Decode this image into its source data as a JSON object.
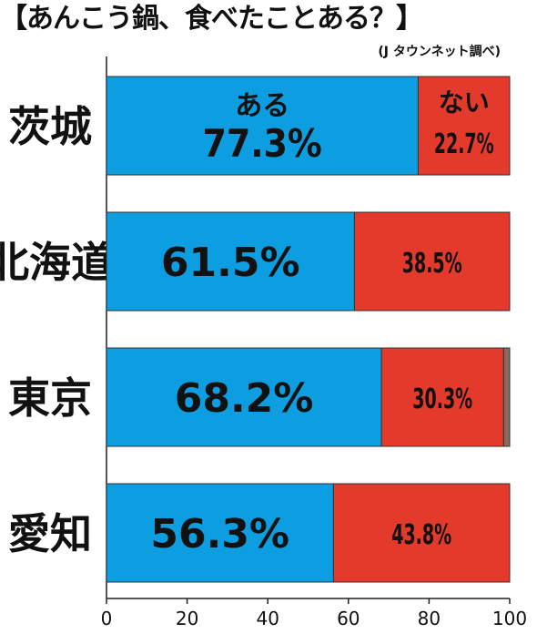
{
  "title": "【あんこう鍋、食べたことある？】",
  "source": "(J タウンネット調べ)",
  "chart_data": {
    "type": "bar",
    "orientation": "horizontal",
    "stacked": true,
    "categories": [
      "茨城",
      "北海道",
      "東京",
      "愛知"
    ],
    "series": [
      {
        "name": "ある",
        "values": [
          77.3,
          61.5,
          68.2,
          56.3
        ],
        "labels": [
          "77.3%",
          "61.5%",
          "68.2%",
          "56.3%"
        ],
        "color": "#0c9ee0"
      },
      {
        "name": "ない",
        "values": [
          22.7,
          38.5,
          30.3,
          43.8
        ],
        "labels": [
          "22.7%",
          "38.5%",
          "30.3%",
          "43.8%"
        ],
        "color": "#e43a2c"
      },
      {
        "values": [
          0,
          0,
          1.5,
          0
        ],
        "color": "#8a6a5e"
      }
    ],
    "xlim": [
      0,
      100
    ],
    "xticks": [
      "0",
      "20",
      "40",
      "60",
      "80",
      "100"
    ],
    "grid": false
  }
}
